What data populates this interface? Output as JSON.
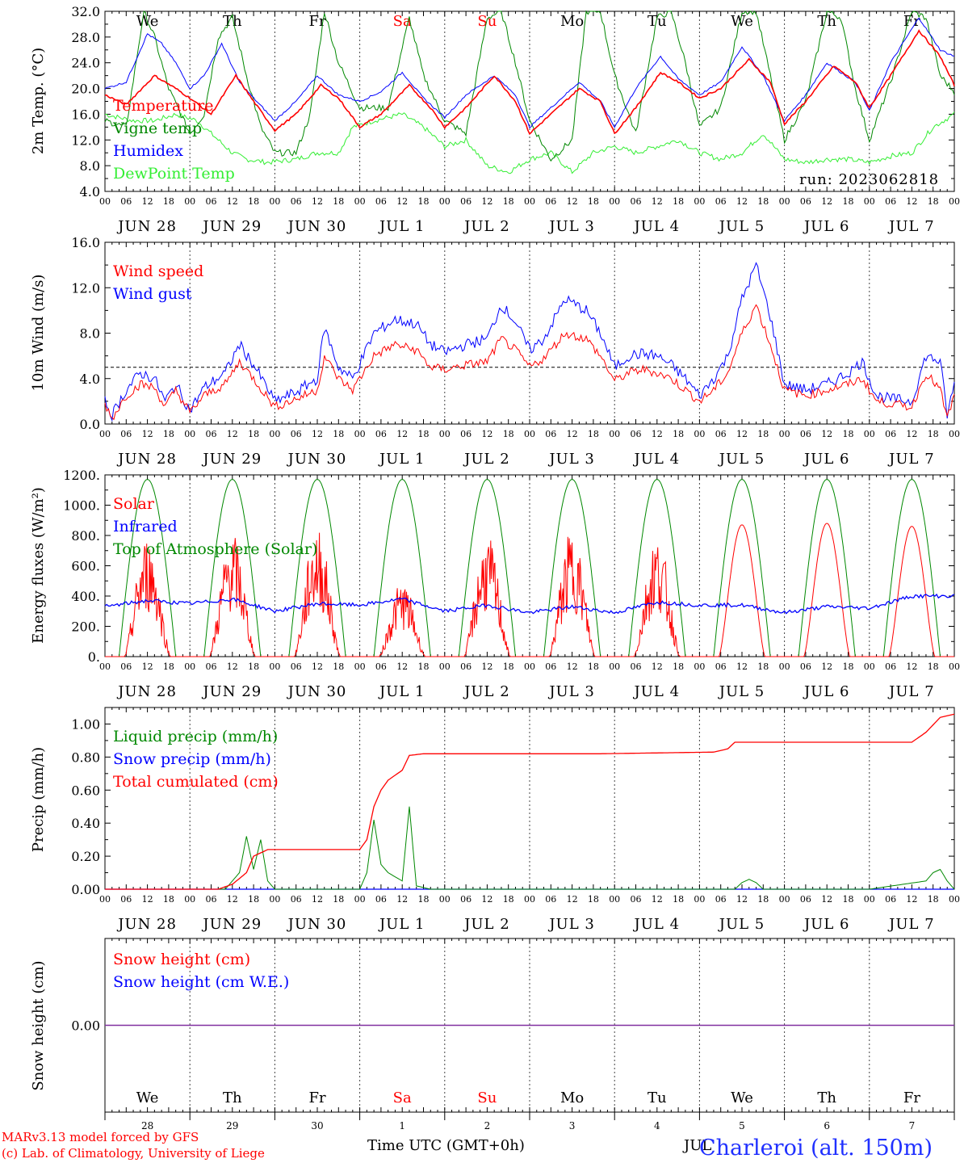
{
  "header": {
    "run_label": "run: 2023062818",
    "station": "Charleroi (alt. 150m)",
    "credit_line1": "MARv3.13 model forced by GFS",
    "credit_line2": "(c) Lab. of Climatology, University of Liege",
    "x_axis_title": "Time UTC (GMT+0h)",
    "month_label": "JUL"
  },
  "colors": {
    "red": "#ff0000",
    "green": "#008800",
    "lightgreen": "#33ee33",
    "blue": "#0000ff",
    "purple": "#8030a0"
  },
  "days": [
    "We",
    "Th",
    "Fr",
    "Sa",
    "Su",
    "Mo",
    "Tu",
    "We",
    "Th",
    "Fr"
  ],
  "weekend_days": [
    3,
    4
  ],
  "day_numbers": [
    "28",
    "29",
    "30",
    "1",
    "2",
    "3",
    "4",
    "5",
    "6",
    "7"
  ],
  "date_labels": [
    "JUN 28",
    "JUN 29",
    "JUN 30",
    "JUL  1",
    "JUL  2",
    "JUL  3",
    "JUL  4",
    "JUL  5",
    "JUL  6",
    "JUL  7"
  ],
  "hour_labels": [
    "00",
    "06",
    "12",
    "18"
  ],
  "chart_data": [
    {
      "type": "line",
      "id": "temp",
      "ylabel": "2m Temp. (°C)",
      "ylim": [
        4,
        32
      ],
      "yticks": [
        "4.0",
        "8.0",
        "12.0",
        "16.0",
        "20.0",
        "24.0",
        "28.0",
        "32.0"
      ],
      "x_unit": "hours since 2023-06-28 00 UTC",
      "series": [
        {
          "name": "Temperature",
          "color": "#ff0000",
          "x": [
            0,
            6,
            14,
            20,
            24,
            30,
            37,
            42,
            48,
            54,
            61,
            66,
            72,
            78,
            86,
            92,
            96,
            102,
            110,
            116,
            120,
            126,
            134,
            140,
            144,
            150,
            157,
            162,
            168,
            174,
            182,
            188,
            192,
            198,
            206,
            212,
            216,
            222,
            230,
            236,
            240
          ],
          "values": [
            19,
            17.5,
            22,
            20,
            18.5,
            16,
            22,
            18,
            13.5,
            16,
            20.5,
            18.5,
            14,
            16,
            20.5,
            17,
            14,
            17,
            22,
            18,
            13,
            16,
            20,
            18,
            13,
            17,
            22.5,
            21,
            18.5,
            20,
            24.5,
            21,
            14.5,
            18,
            23.5,
            21,
            17,
            22,
            29,
            25,
            20.5
          ]
        },
        {
          "name": "Vigne temp",
          "color": "#008800",
          "x": [
            0,
            6,
            11,
            14,
            18,
            24,
            28,
            32,
            36,
            40,
            44,
            48,
            54,
            58,
            62,
            66,
            72,
            80,
            86,
            90,
            96,
            102,
            108,
            112,
            116,
            120,
            126,
            132,
            136,
            140,
            144,
            150,
            156,
            160,
            164,
            168,
            174,
            180,
            184,
            188,
            192,
            198,
            204,
            208,
            212,
            216,
            222,
            228,
            232,
            236,
            240
          ],
          "values": [
            15,
            14,
            32,
            28,
            20,
            13,
            16,
            28,
            31,
            22,
            14,
            10,
            10,
            16,
            32,
            24,
            17,
            17,
            31,
            22,
            15,
            13,
            31,
            32,
            24,
            15,
            9,
            12,
            32,
            32,
            22,
            13,
            31,
            32,
            24,
            14,
            17,
            32,
            32,
            22,
            12,
            18,
            32,
            31,
            20,
            12,
            21,
            32,
            31,
            22,
            19.5
          ]
        },
        {
          "name": "Humidex",
          "color": "#0000ff",
          "x": [
            0,
            6,
            12,
            16,
            20,
            24,
            28,
            33,
            38,
            42,
            48,
            54,
            60,
            66,
            72,
            78,
            84,
            90,
            96,
            102,
            110,
            116,
            120,
            126,
            134,
            140,
            144,
            150,
            157,
            162,
            168,
            174,
            180,
            186,
            192,
            198,
            204,
            212,
            216,
            222,
            230,
            236,
            240
          ],
          "values": [
            20,
            21,
            28.5,
            27,
            24,
            20,
            22,
            27,
            21,
            18.5,
            15,
            18,
            22,
            19,
            18,
            19.5,
            22.5,
            18.5,
            15.5,
            19,
            22,
            19,
            14,
            17,
            21,
            18,
            14,
            20,
            25,
            21.5,
            19,
            21,
            26.5,
            22,
            15,
            19,
            24,
            21,
            16.5,
            24,
            31,
            26,
            25
          ]
        },
        {
          "name": "DewPoint Temp",
          "color": "#33ee33",
          "x": [
            0,
            8,
            14,
            20,
            26,
            32,
            36,
            40,
            46,
            54,
            60,
            66,
            70,
            76,
            84,
            90,
            96,
            102,
            108,
            114,
            120,
            126,
            132,
            138,
            144,
            150,
            156,
            162,
            168,
            174,
            180,
            186,
            192,
            198,
            204,
            210,
            216,
            222,
            228,
            234,
            240
          ],
          "values": [
            16,
            15,
            15,
            16,
            15,
            12,
            10,
            9,
            8.5,
            9,
            10,
            10,
            14,
            15,
            16,
            14,
            11,
            12,
            8,
            7,
            9,
            10,
            7,
            10,
            11,
            10,
            11,
            12,
            10,
            9,
            10,
            13,
            9,
            8.5,
            9,
            9,
            8.5,
            9.5,
            10,
            14,
            16
          ]
        }
      ]
    },
    {
      "type": "line",
      "id": "wind",
      "ylabel": "10m Wind (m/s)",
      "ylim": [
        0,
        16
      ],
      "yticks": [
        "0.0",
        "4.0",
        "8.0",
        "12.0",
        "16.0"
      ],
      "reference_line": 5,
      "x_unit": "hours since 2023-06-28 00 UTC",
      "series": [
        {
          "name": "Wind speed",
          "color": "#ff0000",
          "x": [
            0,
            2,
            6,
            10,
            14,
            17,
            20,
            24,
            28,
            34,
            38,
            42,
            48,
            54,
            60,
            62,
            66,
            70,
            76,
            82,
            88,
            92,
            96,
            102,
            108,
            112,
            116,
            120,
            124,
            130,
            136,
            140,
            144,
            148,
            152,
            156,
            160,
            164,
            168,
            172,
            176,
            180,
            184,
            188,
            192,
            198,
            204,
            210,
            214,
            218,
            222,
            228,
            232,
            236,
            238,
            240
          ],
          "values": [
            1.8,
            0.5,
            2.5,
            3.5,
            3.2,
            1.5,
            3.0,
            1.0,
            2.5,
            3.5,
            5.5,
            4.0,
            1.5,
            2.2,
            3.0,
            6.0,
            4.0,
            3.0,
            6.0,
            7.0,
            6.5,
            5.0,
            4.8,
            5.2,
            5.5,
            7.5,
            6.5,
            5.0,
            5.8,
            8.0,
            7.5,
            6.0,
            3.8,
            4.5,
            4.8,
            4.5,
            4.0,
            3.0,
            2.0,
            3.0,
            4.5,
            8.0,
            10.5,
            7.0,
            3.0,
            2.5,
            3.0,
            3.5,
            4.0,
            2.0,
            1.8,
            1.5,
            4.5,
            3.0,
            0.5,
            2.5
          ]
        },
        {
          "name": "Wind gust",
          "color": "#0000ff",
          "x": [
            0,
            2,
            6,
            10,
            14,
            17,
            20,
            24,
            28,
            34,
            38,
            42,
            48,
            54,
            60,
            62,
            66,
            70,
            76,
            82,
            88,
            92,
            96,
            102,
            108,
            112,
            116,
            120,
            124,
            130,
            136,
            140,
            144,
            148,
            152,
            156,
            160,
            164,
            168,
            172,
            176,
            180,
            184,
            188,
            192,
            198,
            204,
            210,
            214,
            218,
            222,
            228,
            232,
            236,
            238,
            240
          ],
          "values": [
            2.0,
            0.8,
            3.0,
            4.5,
            4.0,
            2.0,
            3.5,
            1.2,
            3.2,
            4.5,
            7.0,
            5.2,
            2.0,
            2.8,
            4.0,
            8.5,
            5.0,
            4.0,
            8.0,
            9.2,
            8.8,
            7.0,
            6.3,
            7.0,
            7.5,
            10.5,
            9.0,
            6.5,
            7.5,
            11.0,
            10.0,
            8.0,
            5.0,
            6.0,
            6.2,
            6.0,
            5.2,
            4.0,
            2.5,
            4.0,
            6.0,
            11.0,
            14.0,
            9.5,
            3.5,
            3.0,
            3.5,
            4.5,
            5.5,
            2.5,
            2.2,
            2.0,
            6.0,
            5.5,
            0.8,
            3.5
          ]
        }
      ]
    },
    {
      "type": "line",
      "id": "energy",
      "ylabel": "Energy fluxes (W/m²)",
      "ylim": [
        0,
        1200
      ],
      "yticks": [
        "0.",
        "200.",
        "400.",
        "600.",
        "800.",
        "1000.",
        "1200."
      ],
      "x_unit": "hours since 2023-06-28 00 UTC",
      "toa_peak": 1170,
      "solar_peaks": [
        800,
        820,
        860,
        500,
        800,
        840,
        810,
        870,
        880,
        860
      ],
      "series": [
        {
          "name": "Solar",
          "color": "#ff0000"
        },
        {
          "name": "Infrared",
          "color": "#0000ff",
          "x": [
            0,
            12,
            24,
            36,
            48,
            60,
            72,
            84,
            96,
            108,
            120,
            132,
            144,
            156,
            168,
            180,
            192,
            204,
            216,
            228,
            240
          ],
          "values": [
            330,
            370,
            350,
            380,
            300,
            350,
            340,
            380,
            300,
            340,
            290,
            330,
            290,
            360,
            340,
            340,
            290,
            330,
            320,
            400,
            400
          ]
        },
        {
          "name": "Top of Atmosphere (Solar)",
          "color": "#008800"
        }
      ]
    },
    {
      "type": "line",
      "id": "precip",
      "ylabel": "Precip (mm/h)",
      "ylim": [
        0,
        1.1
      ],
      "yticks": [
        "0.00",
        "0.20",
        "0.40",
        "0.60",
        "0.80",
        "1.00"
      ],
      "x_unit": "hours since 2023-06-28 00 UTC",
      "series": [
        {
          "name": "Liquid precip (mm/h)",
          "color": "#008800",
          "x": [
            0,
            34,
            36,
            38,
            40,
            42,
            44,
            46,
            48,
            72,
            74,
            76,
            78,
            80,
            84,
            86,
            88,
            90,
            92,
            160,
            178,
            180,
            182,
            184,
            186,
            216,
            232,
            234,
            236,
            238,
            240
          ],
          "values": [
            0,
            0,
            0.05,
            0.1,
            0.32,
            0.12,
            0.3,
            0.05,
            0,
            0,
            0.1,
            0.42,
            0.15,
            0.1,
            0.05,
            0.5,
            0.02,
            0.01,
            0,
            0,
            0,
            0.04,
            0.06,
            0.04,
            0,
            0,
            0.05,
            0.1,
            0.12,
            0.05,
            0
          ]
        },
        {
          "name": "Snow precip (mm/h)",
          "color": "#0000ff",
          "x": [
            0,
            240
          ],
          "values": [
            0,
            0
          ]
        },
        {
          "name": "Total cumulated (cm)",
          "color": "#ff0000",
          "x": [
            0,
            32,
            36,
            40,
            42,
            46,
            72,
            74,
            76,
            78,
            80,
            84,
            86,
            90,
            96,
            140,
            172,
            176,
            178,
            200,
            228,
            232,
            236,
            240
          ],
          "values": [
            0,
            0,
            0.03,
            0.1,
            0.2,
            0.24,
            0.24,
            0.3,
            0.5,
            0.6,
            0.66,
            0.72,
            0.81,
            0.82,
            0.82,
            0.82,
            0.83,
            0.85,
            0.89,
            0.89,
            0.89,
            0.95,
            1.04,
            1.06
          ]
        }
      ]
    },
    {
      "type": "line",
      "id": "snow",
      "ylabel": "Snow height (cm)",
      "ylim": [
        -1,
        1
      ],
      "yticks": [
        "0.00"
      ],
      "series": [
        {
          "name": "Snow height (cm)",
          "color": "#ff0000",
          "x": [
            0,
            240
          ],
          "values": [
            0,
            0
          ]
        },
        {
          "name": "Snow height (cm W.E.)",
          "color": "#0000ff",
          "x": [
            0,
            240
          ],
          "values": [
            0,
            0
          ]
        }
      ]
    }
  ]
}
